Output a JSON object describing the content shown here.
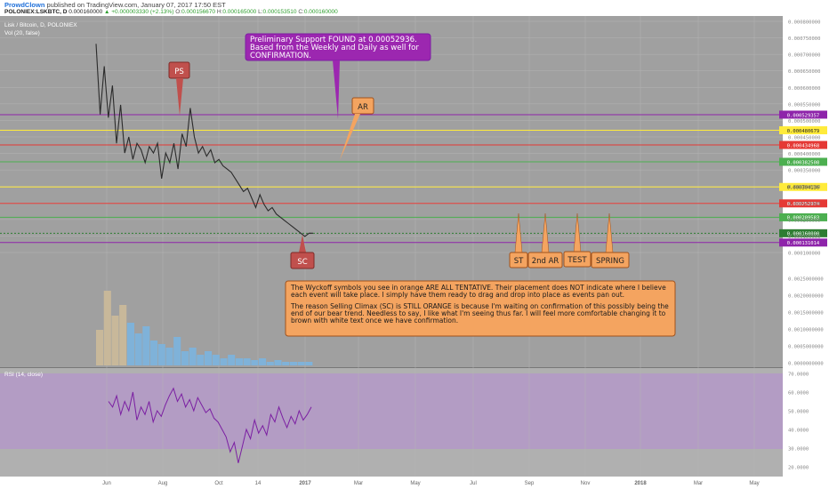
{
  "header": {
    "publisher": "ProwdClown",
    "published_text": "published on TradingView.com, January 07, 2017 17:50 EST",
    "symbol": "POLONIEX:LSKBTC, D",
    "last": "0.000160000",
    "change": "▲ +0.000003330 (+2.13%)",
    "o_label": "O:",
    "o_value": "0.000156670",
    "h_label": "H:",
    "h_value": "0.000165000",
    "l_label": "L:",
    "l_value": "0.000153510",
    "c_label": "C:",
    "c_value": "0.000160000"
  },
  "chart_data": [
    {
      "type": "line",
      "title": "Lisk / Bitcoin, D, POLONIEX",
      "subtitle": "Vol (20, false)",
      "x_ticks": [
        "Jun",
        "Aug",
        "Oct",
        "14",
        "2017",
        "Mar",
        "May",
        "Jul",
        "Sep",
        "Nov",
        "2018",
        "Mar",
        "May"
      ],
      "y_ticks": [
        "0.000800000",
        "0.000750000",
        "0.000700000",
        "0.000650000",
        "0.000600000",
        "0.000550000",
        "0.000500000",
        "0.000450000",
        "0.000400000",
        "0.000350000",
        "0.000300000",
        "0.000250000",
        "0.000200000",
        "0.000150000",
        "0.000100000"
      ],
      "ylim": [
        0.0001,
        0.00082
      ],
      "series": [
        {
          "values": [
            0.00075,
            0.00053,
            0.00068,
            0.00052,
            0.00062,
            0.00044,
            0.00056,
            0.00041,
            0.00046,
            0.00039,
            0.00044,
            0.00042,
            0.00038,
            0.00043,
            0.00041,
            0.00044,
            0.00033,
            0.00041,
            0.00038,
            0.00044,
            0.00036,
            0.00047,
            0.00043,
            0.00055,
            0.00046,
            0.00041,
            0.00043,
            0.0004,
            0.00042,
            0.00038,
            0.00039,
            0.00037,
            0.00036,
            0.00035,
            0.00033,
            0.00031,
            0.00029,
            0.0003,
            0.00027,
            0.00024,
            0.00028,
            0.00025,
            0.00023,
            0.00024,
            0.00022,
            0.00021,
            0.0002,
            0.00019,
            0.00018,
            0.00017,
            0.00016,
            0.00015,
            0.00016,
            0.00016
          ]
        }
      ],
      "levels": [
        {
          "value": 0.000529357,
          "label": "0.000529357",
          "color": "#8e24aa"
        },
        {
          "value": 0.000480679,
          "label": "0.000480679",
          "color": "#ffeb3b"
        },
        {
          "value": 0.000434968,
          "label": "0.000434968",
          "color": "#e53935"
        },
        {
          "value": 0.000382508,
          "label": "0.000382508",
          "color": "#4caf50"
        },
        {
          "value": 0.000304136,
          "label": "0.000304136",
          "color": "#ffeb3b"
        },
        {
          "value": 0.000252974,
          "label": "0.000252974",
          "color": "#e53935"
        },
        {
          "value": 0.000209583,
          "label": "0.000209583",
          "color": "#4caf50"
        },
        {
          "value": 0.00016,
          "label": "0.000160000",
          "color": "#2e7d32"
        },
        {
          "value": 0.000131014,
          "label": "0.000131014",
          "color": "#8e24aa"
        }
      ]
    },
    {
      "type": "bar",
      "title": "Vol (20, false)",
      "y_ticks": [
        "0.0025000000",
        "0.0020000000",
        "0.0015000000",
        "0.0010000000",
        "0.0005000000",
        "0.0000000000"
      ],
      "values": [
        0.001,
        0.0021,
        0.0014,
        0.0017,
        0.0012,
        0.0009,
        0.0011,
        0.0007,
        0.0006,
        0.0005,
        0.0008,
        0.0004,
        0.0005,
        0.0003,
        0.0004,
        0.0003,
        0.0002,
        0.0003,
        0.0002,
        0.0002,
        0.00015,
        0.0002,
        0.0001,
        0.00015,
        0.0001,
        0.0001,
        0.0001,
        0.0001
      ]
    },
    {
      "type": "line",
      "title": "RSI (14, close)",
      "y_ticks": [
        "70.0000",
        "60.0000",
        "50.0000",
        "40.0000",
        "30.0000",
        "20.0000"
      ],
      "ylim": [
        20,
        70
      ],
      "series": [
        {
          "values": [
            55,
            52,
            58,
            48,
            55,
            50,
            60,
            45,
            52,
            48,
            55,
            44,
            50,
            47,
            53,
            58,
            62,
            55,
            59,
            52,
            56,
            50,
            57,
            53,
            49,
            51,
            46,
            44,
            40,
            36,
            28,
            33,
            22,
            31,
            40,
            35,
            45,
            38,
            42,
            37,
            48,
            44,
            52,
            46,
            41,
            47,
            43,
            50,
            45,
            48,
            52
          ]
        }
      ]
    }
  ],
  "annotations": {
    "support_note": "Preliminary Support FOUND at 0.00052936.  Based from the Weekly and Daily as well for CONFIRMATION.",
    "ps": "PS",
    "ar": "AR",
    "sc": "SC",
    "st": "ST",
    "ar2": "2nd AR",
    "test": "TEST",
    "spring": "SPRING",
    "wyckoff_note_1": "The Wyckoff symbols you see in orange ARE ALL TENTATIVE.  Their placement does NOT indicate where I believe each event will take place.  I simply have them ready to drag and drop into place as events pan out.",
    "wyckoff_note_2": "The reason Selling Climax (SC) is STILL ORANGE is because I'm waiting on confirmation of this possibly being the end of our bear trend.  Needless to say, I like what I'm seeing thus far.  I will feel more comfortable changing it to brown with white text once we have confirmation."
  },
  "colors": {
    "panel_bg": "#a0a0a0",
    "rsi_bg": "#b39cc4",
    "axis_bg": "#ffffff",
    "purple_note": "#9c27b0",
    "orange_note": "#f4a460",
    "red_marker": "#c0504d"
  }
}
